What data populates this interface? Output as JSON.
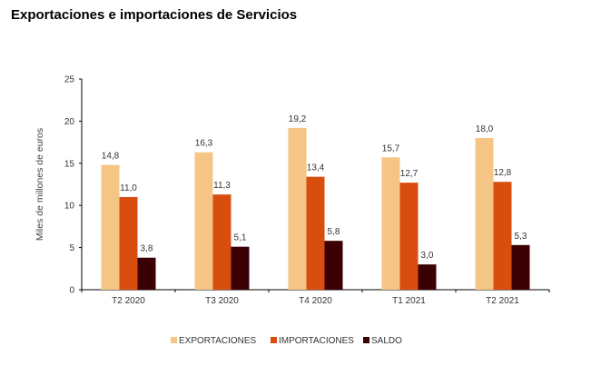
{
  "chart_data": {
    "type": "bar",
    "title": "Exportaciones e importaciones de Servicios",
    "xlabel": "",
    "ylabel": "Miles de millones de euros",
    "ylim": [
      0,
      25
    ],
    "yticks": [
      "0",
      "5",
      "10",
      "15",
      "20",
      "25"
    ],
    "ytick_values": [
      0,
      5,
      10,
      15,
      20,
      25
    ],
    "grid": false,
    "legend_position": "bottom",
    "categories": [
      "T2 2020",
      "T3 2020",
      "T4 2020",
      "T1 2021",
      "T2 2021"
    ],
    "series": [
      {
        "name": "EXPORTACIONES",
        "color": "#F5C585",
        "values": [
          14.8,
          16.3,
          19.2,
          15.7,
          18.0
        ],
        "labels": [
          "14,8",
          "16,3",
          "19,2",
          "15,7",
          "18,0"
        ]
      },
      {
        "name": "IMPORTACIONES",
        "color": "#D84E0E",
        "values": [
          11.0,
          11.3,
          13.4,
          12.7,
          12.8
        ],
        "labels": [
          "11,0",
          "11,3",
          "13,4",
          "12,7",
          "12,8"
        ]
      },
      {
        "name": "SALDO",
        "color": "#3A0004",
        "values": [
          3.8,
          5.1,
          5.8,
          3.0,
          5.3
        ],
        "labels": [
          "3,8",
          "5,1",
          "5,8",
          "3,0",
          "5,3"
        ]
      }
    ]
  }
}
